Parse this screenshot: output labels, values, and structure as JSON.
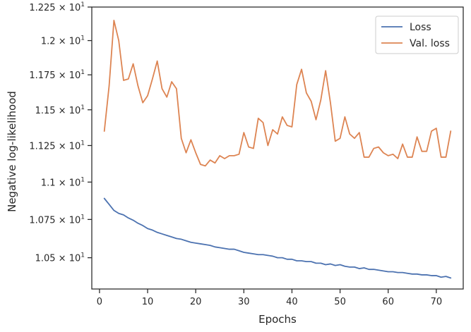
{
  "chart_data": {
    "type": "line",
    "xlabel": "Epochs",
    "ylabel": "Negative log-likelihood",
    "xlim": [
      -1.6,
      75.6
    ],
    "ylim": [
      10.3,
      12.25
    ],
    "x_ticks": [
      0,
      10,
      20,
      30,
      40,
      50,
      60,
      70
    ],
    "y_ticks": [
      {
        "value": 10.5,
        "mantissa": "1.05",
        "base": "10",
        "exp": "1"
      },
      {
        "value": 10.75,
        "mantissa": "1.075",
        "base": "10",
        "exp": "1"
      },
      {
        "value": 11.0,
        "mantissa": "1.1",
        "base": "10",
        "exp": "1"
      },
      {
        "value": 11.25,
        "mantissa": "1.125",
        "base": "10",
        "exp": "1"
      },
      {
        "value": 11.5,
        "mantissa": "1.15",
        "base": "10",
        "exp": "1"
      },
      {
        "value": 11.75,
        "mantissa": "1.175",
        "base": "10",
        "exp": "1"
      },
      {
        "value": 12.0,
        "mantissa": "1.2",
        "base": "10",
        "exp": "1"
      },
      {
        "value": 12.25,
        "mantissa": "1.225",
        "base": "10",
        "exp": "1"
      }
    ],
    "y_scale": "log",
    "grid": false,
    "legend_position": "top-right",
    "x": [
      1,
      2,
      3,
      4,
      5,
      6,
      7,
      8,
      9,
      10,
      11,
      12,
      13,
      14,
      15,
      16,
      17,
      18,
      19,
      20,
      21,
      22,
      23,
      24,
      25,
      26,
      27,
      28,
      29,
      30,
      31,
      32,
      33,
      34,
      35,
      36,
      37,
      38,
      39,
      40,
      41,
      42,
      43,
      44,
      45,
      46,
      47,
      48,
      49,
      50,
      51,
      52,
      53,
      54,
      55,
      56,
      57,
      58,
      59,
      60,
      61,
      62,
      63,
      64,
      65,
      66,
      67,
      68,
      69,
      70,
      71,
      72,
      73
    ],
    "series": [
      {
        "name": "Loss",
        "color": "#4c72b0",
        "values": [
          10.89,
          10.85,
          10.81,
          10.79,
          10.78,
          10.76,
          10.745,
          10.725,
          10.71,
          10.69,
          10.68,
          10.665,
          10.655,
          10.645,
          10.635,
          10.625,
          10.62,
          10.61,
          10.6,
          10.595,
          10.59,
          10.585,
          10.58,
          10.57,
          10.565,
          10.56,
          10.555,
          10.555,
          10.545,
          10.535,
          10.53,
          10.525,
          10.52,
          10.52,
          10.515,
          10.51,
          10.5,
          10.5,
          10.49,
          10.49,
          10.48,
          10.48,
          10.475,
          10.475,
          10.465,
          10.465,
          10.455,
          10.46,
          10.45,
          10.455,
          10.445,
          10.44,
          10.44,
          10.43,
          10.435,
          10.425,
          10.425,
          10.42,
          10.415,
          10.41,
          10.41,
          10.405,
          10.405,
          10.4,
          10.395,
          10.395,
          10.39,
          10.39,
          10.385,
          10.385,
          10.375,
          10.38,
          10.37
        ]
      },
      {
        "name": "Val. loss",
        "color": "#dd8452",
        "values": [
          11.35,
          11.67,
          12.15,
          12.0,
          11.71,
          11.72,
          11.83,
          11.67,
          11.55,
          11.6,
          11.72,
          11.85,
          11.65,
          11.59,
          11.7,
          11.65,
          11.3,
          11.2,
          11.29,
          11.2,
          11.12,
          11.11,
          11.15,
          11.13,
          11.18,
          11.16,
          11.18,
          11.18,
          11.19,
          11.34,
          11.24,
          11.23,
          11.44,
          11.41,
          11.25,
          11.36,
          11.33,
          11.45,
          11.39,
          11.38,
          11.68,
          11.79,
          11.62,
          11.56,
          11.43,
          11.57,
          11.78,
          11.55,
          11.28,
          11.3,
          11.45,
          11.33,
          11.3,
          11.34,
          11.17,
          11.17,
          11.23,
          11.24,
          11.2,
          11.18,
          11.19,
          11.16,
          11.26,
          11.17,
          11.17,
          11.31,
          11.21,
          11.21,
          11.35,
          11.37,
          11.17,
          11.17,
          11.35
        ]
      }
    ]
  }
}
